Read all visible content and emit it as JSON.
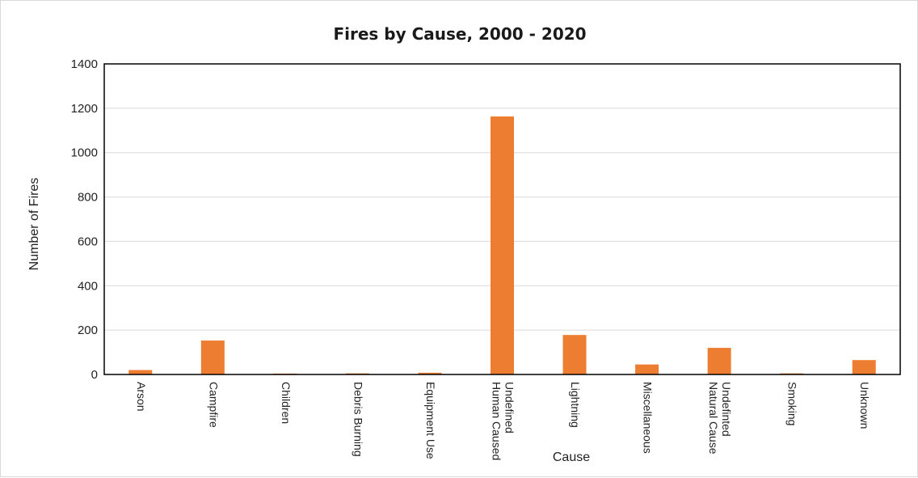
{
  "chart_data": {
    "type": "bar",
    "title": "Fires by Cause, 2000 - 2020",
    "xlabel": "Cause",
    "ylabel": "Number of Fires",
    "categories": [
      [
        "Arson"
      ],
      [
        "Campfire"
      ],
      [
        "Children"
      ],
      [
        "Debris Burning"
      ],
      [
        "Equipment Use"
      ],
      [
        "Undefined",
        "Human Caused"
      ],
      [
        "Lightning"
      ],
      [
        "Miscellaneous"
      ],
      [
        "Undefinted",
        "Natural Cause"
      ],
      [
        "Smoking"
      ],
      [
        "Unknown"
      ]
    ],
    "values": [
      20,
      153,
      4,
      5,
      8,
      1163,
      178,
      45,
      120,
      5,
      65
    ],
    "ylim": [
      0,
      1400
    ],
    "yticks": [
      0,
      200,
      400,
      600,
      800,
      1000,
      1200,
      1400
    ],
    "grid": true,
    "legend": "none",
    "bar_color": "#ED7D31"
  }
}
